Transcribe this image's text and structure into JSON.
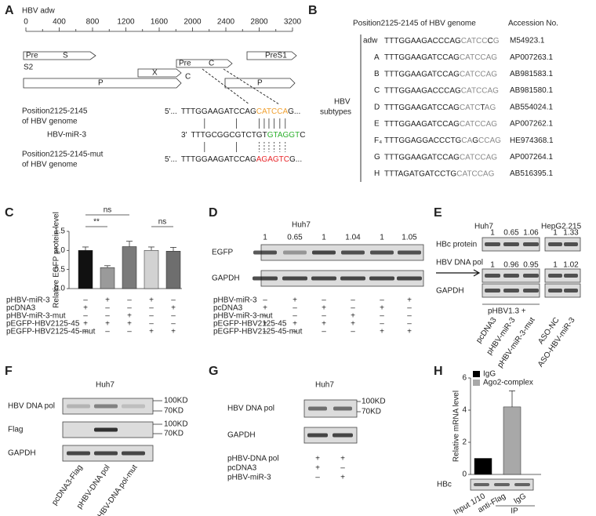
{
  "panel_labels": [
    "A",
    "B",
    "C",
    "D",
    "E",
    "F",
    "G",
    "H"
  ],
  "panel_A": {
    "title": "HBV adw",
    "scale_lim": [
      0,
      3200
    ],
    "scale_ticks": [
      0,
      400,
      800,
      1200,
      1600,
      2000,
      2400,
      2800,
      3200
    ],
    "genes": [
      "Pre",
      "S",
      "S2",
      "Pre",
      "C",
      "PreS1",
      "X",
      "C",
      "P",
      "P"
    ],
    "sequences": [
      {
        "label": [
          "Position2125-2145",
          "of HBV genome"
        ],
        "prefix": "5'...",
        "segments": [
          {
            "text": "TTTGGAAGATCCAG",
            "color": "#222222"
          },
          {
            "text": "CATCCA",
            "color": "#f0a030"
          },
          {
            "text": "G...",
            "color": "#222222"
          }
        ]
      },
      {
        "label": [
          "HBV-miR-3"
        ],
        "prefix": "3'",
        "segments": [
          {
            "text": "TTTGCGGCGTCTGT",
            "color": "#222222"
          },
          {
            "text": "GTAGGT",
            "color": "#2db02d"
          },
          {
            "text": "C",
            "color": "#222222"
          }
        ]
      },
      {
        "label": [
          "Position2125-2145-mut",
          "of HBV genome"
        ],
        "prefix": "5'...",
        "segments": [
          {
            "text": "TTTGGAAGATCCAG",
            "color": "#222222"
          },
          {
            "text": "AGAGTC",
            "color": "#e8262a"
          },
          {
            "text": "G...",
            "color": "#222222"
          }
        ]
      }
    ]
  },
  "panel_B": {
    "header": [
      "Position2125-2145 of HBV genome",
      "Accession No."
    ],
    "group_label": [
      "HBV",
      "subtypes"
    ],
    "rows": [
      {
        "name": "adw",
        "segments": [
          {
            "text": "TTTGGAAGACCCAG",
            "color": "#222222"
          },
          {
            "text": "CATCC",
            "color": "#8a8a8a"
          },
          {
            "text": "C",
            "color": "#222222"
          },
          {
            "text": "G",
            "color": "#8a8a8a"
          }
        ],
        "accession": "M54923.1"
      },
      {
        "name": "A",
        "segments": [
          {
            "text": "TTTGGAAGATCCAG",
            "color": "#222222"
          },
          {
            "text": "CATCCAG",
            "color": "#8a8a8a"
          }
        ],
        "accession": "AP007263.1"
      },
      {
        "name": "B",
        "segments": [
          {
            "text": "TTTGGAAGATCCAG",
            "color": "#222222"
          },
          {
            "text": "CATCCAG",
            "color": "#8a8a8a"
          }
        ],
        "accession": "AB981583.1"
      },
      {
        "name": "C",
        "segments": [
          {
            "text": "TTTGGAAGACCCAG",
            "color": "#222222"
          },
          {
            "text": "CATCCAG",
            "color": "#8a8a8a"
          }
        ],
        "accession": "AB981580.1"
      },
      {
        "name": "D",
        "segments": [
          {
            "text": "TTTGGAAGATCCAG",
            "color": "#222222"
          },
          {
            "text": "CATC",
            "color": "#8a8a8a"
          },
          {
            "text": "T",
            "color": "#222222"
          },
          {
            "text": "AG",
            "color": "#8a8a8a"
          }
        ],
        "accession": "AB554024.1"
      },
      {
        "name": "E",
        "segments": [
          {
            "text": "TTTGGAAGATCCAG",
            "color": "#222222"
          },
          {
            "text": "CATCCAG",
            "color": "#8a8a8a"
          }
        ],
        "accession": "AP007262.1"
      },
      {
        "name": "F₄",
        "segments": [
          {
            "text": "TTTGGAGGACCCTG",
            "color": "#222222"
          },
          {
            "text": "CA",
            "color": "#8a8a8a"
          },
          {
            "text": "G",
            "color": "#222222"
          },
          {
            "text": "CCAG",
            "color": "#8a8a8a"
          }
        ],
        "accession": "HE974368.1"
      },
      {
        "name": "G",
        "segments": [
          {
            "text": "TTTGGAAGATCCAG",
            "color": "#222222"
          },
          {
            "text": "CATCCAG",
            "color": "#8a8a8a"
          }
        ],
        "accession": "AP007264.1"
      },
      {
        "name": "H",
        "segments": [
          {
            "text": "TTTAGATGATCCTG",
            "color": "#222222"
          },
          {
            "text": "CATCCAG",
            "color": "#8a8a8a"
          }
        ],
        "accession": "AB516395.1"
      }
    ]
  },
  "chart_data": [
    {
      "type": "bar",
      "y_label": "Relative EGFP protein level",
      "values": [
        1.0,
        0.55,
        1.1,
        1.0,
        0.98
      ],
      "errors": [
        0.09,
        0.05,
        0.14,
        0.09,
        0.1
      ],
      "colors": [
        "#111111",
        "#9a9a9a",
        "#7a7a7a",
        "#d2d2d2",
        "#6e6e6e"
      ],
      "ylim": [
        0,
        1.5
      ],
      "yticks": [
        {
          "value": 0,
          "label": "0.0"
        },
        0.5,
        {
          "value": 1,
          "label": "1.0"
        },
        1.5
      ],
      "annotations": [
        "ns",
        "**",
        "ns"
      ],
      "conditions": {
        "rows": [
          "pHBV-miR-3",
          "pcDNA3",
          "pHBV-miR-3-mut",
          "pEGFP-HBV2125-45",
          "pEGFP-HBV2125-45-mut"
        ],
        "signs": [
          [
            "–",
            "+",
            "–",
            "+",
            "–"
          ],
          [
            "+",
            "–",
            "–",
            "–",
            "+"
          ],
          [
            "–",
            "–",
            "+",
            "–",
            "–"
          ],
          [
            "+",
            "+",
            "+",
            "–",
            "–"
          ],
          [
            "–",
            "–",
            "–",
            "+",
            "+"
          ]
        ]
      }
    },
    {
      "type": "bar",
      "y_label": "Relative mRNA level",
      "series": [
        {
          "name": "IgG",
          "color": "#000000",
          "values": [
            1.0
          ]
        },
        {
          "name": "Ago2-complex",
          "color": "#a8a8a8",
          "values": [
            4.2
          ],
          "errors": [
            1.0
          ]
        }
      ],
      "ylim": [
        0,
        6
      ],
      "yticks": [
        0,
        2,
        4,
        6
      ],
      "legend": "top-left"
    }
  ],
  "panel_D": {
    "title": "Huh7",
    "quantities": [
      1,
      0.65,
      1,
      1.04,
      1,
      1.05
    ],
    "blots": [
      "EGFP",
      "GAPDH"
    ],
    "conditions": {
      "rows": [
        "pHBV-miR-3",
        "pcDNA3",
        "pHBV-miR-3-mut",
        "pEGFP-HBV2125-45",
        "pEGFP-HBV2125-45-mut"
      ],
      "signs": [
        [
          "–",
          "+",
          "–",
          "–",
          "–",
          "+"
        ],
        [
          "+",
          "–",
          "+",
          "–",
          "+",
          "–"
        ],
        [
          "–",
          "–",
          "–",
          "+",
          "–",
          "–"
        ],
        [
          "+",
          "+",
          "+",
          "+",
          "–",
          "–"
        ],
        [
          "–",
          "–",
          "–",
          "–",
          "+",
          "+"
        ]
      ]
    }
  },
  "panel_E": {
    "cell_lines": [
      "Huh7",
      "HepG2.215"
    ],
    "rows": [
      {
        "label": "HBc protein",
        "quantities": [
          1,
          0.65,
          1.06,
          1,
          1.33
        ]
      },
      {
        "label": "HBV DNA pol",
        "quantities": [
          1,
          0.96,
          0.95,
          1,
          1.02
        ]
      },
      {
        "label": "GAPDH"
      }
    ],
    "transfection": "pHBV1.3 +",
    "lanes": [
      "pcDNA3",
      "pHBV-miR-3",
      "pHBV-miR-3-mut",
      "ASO-NC",
      "ASO-HBV-miR-3"
    ]
  },
  "panel_F": {
    "title": "Huh7",
    "blots": [
      "HBV DNA pol",
      "Flag",
      "GAPDH"
    ],
    "markers": [
      "100KD",
      "70KD"
    ],
    "lanes": [
      "pcDNA3-Flag",
      "pHBV-DNA pol",
      "pHBV-DNA pol-mut"
    ]
  },
  "panel_G": {
    "title": "Huh7",
    "blots": [
      "HBV DNA pol",
      "GAPDH"
    ],
    "markers": [
      "100KD",
      "70KD"
    ],
    "conditions": {
      "rows": [
        "pHBV-DNA pol",
        "pcDNA3",
        "pHBV-miR-3"
      ],
      "signs": [
        [
          "+",
          "+"
        ],
        [
          "+",
          "–"
        ],
        [
          "–",
          "+"
        ]
      ]
    }
  },
  "panel_H": {
    "blot": "HBc",
    "lanes": [
      "Input 1/10",
      "anti-Flag",
      "IgG"
    ],
    "group": "IP"
  }
}
